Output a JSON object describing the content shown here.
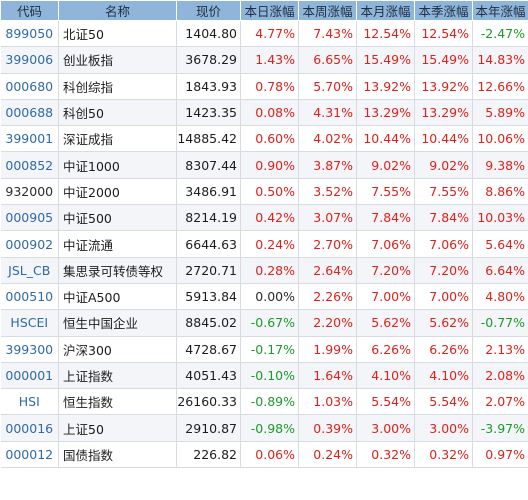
{
  "headers": [
    "代码",
    "名称",
    "现价",
    "本日涨幅",
    "本周涨幅",
    "本月涨幅",
    "本季涨幅",
    "本年涨幅"
  ],
  "rows": [
    {
      "code": "899050",
      "link": true,
      "name": "北证50",
      "price": "1404.80",
      "day": "4.77%",
      "week": "7.43%",
      "month": "12.54%",
      "quarter": "12.54%",
      "year": "-2.47%"
    },
    {
      "code": "399006",
      "link": true,
      "name": "创业板指",
      "price": "3678.29",
      "day": "1.43%",
      "week": "6.65%",
      "month": "15.49%",
      "quarter": "15.49%",
      "year": "14.83%"
    },
    {
      "code": "000680",
      "link": true,
      "name": "科创综指",
      "price": "1843.93",
      "day": "0.78%",
      "week": "5.70%",
      "month": "13.92%",
      "quarter": "13.92%",
      "year": "12.66%"
    },
    {
      "code": "000688",
      "link": true,
      "name": "科创50",
      "price": "1423.35",
      "day": "0.08%",
      "week": "4.31%",
      "month": "13.29%",
      "quarter": "13.29%",
      "year": "5.89%"
    },
    {
      "code": "399001",
      "link": true,
      "name": "深证成指",
      "price": "14885.42",
      "day": "0.60%",
      "week": "4.02%",
      "month": "10.44%",
      "quarter": "10.44%",
      "year": "10.06%"
    },
    {
      "code": "000852",
      "link": true,
      "name": "中证1000",
      "price": "8307.44",
      "day": "0.90%",
      "week": "3.87%",
      "month": "9.02%",
      "quarter": "9.02%",
      "year": "9.38%"
    },
    {
      "code": "932000",
      "link": false,
      "name": "中证2000",
      "price": "3486.91",
      "day": "0.50%",
      "week": "3.52%",
      "month": "7.55%",
      "quarter": "7.55%",
      "year": "8.86%"
    },
    {
      "code": "000905",
      "link": true,
      "name": "中证500",
      "price": "8214.19",
      "day": "0.42%",
      "week": "3.07%",
      "month": "7.84%",
      "quarter": "7.84%",
      "year": "10.03%"
    },
    {
      "code": "000902",
      "link": true,
      "name": "中证流通",
      "price": "6644.63",
      "day": "0.24%",
      "week": "2.70%",
      "month": "7.06%",
      "quarter": "7.06%",
      "year": "5.64%"
    },
    {
      "code": "JSL_CB",
      "link": true,
      "name": "集思录可转债等权",
      "price": "2720.71",
      "day": "0.28%",
      "week": "2.64%",
      "month": "7.20%",
      "quarter": "7.20%",
      "year": "6.64%"
    },
    {
      "code": "000510",
      "link": true,
      "name": "中证A500",
      "price": "5913.84",
      "day": "0.00%",
      "week": "2.26%",
      "month": "7.00%",
      "quarter": "7.00%",
      "year": "4.80%"
    },
    {
      "code": "HSCEI",
      "link": true,
      "name": "恒生中国企业",
      "price": "8845.02",
      "day": "-0.67%",
      "week": "2.20%",
      "month": "5.62%",
      "quarter": "5.62%",
      "year": "-0.77%"
    },
    {
      "code": "399300",
      "link": true,
      "name": "沪深300",
      "price": "4728.67",
      "day": "-0.17%",
      "week": "1.99%",
      "month": "6.26%",
      "quarter": "6.26%",
      "year": "2.13%"
    },
    {
      "code": "000001",
      "link": true,
      "name": "上证指数",
      "price": "4051.43",
      "day": "-0.10%",
      "week": "1.64%",
      "month": "4.10%",
      "quarter": "4.10%",
      "year": "2.08%"
    },
    {
      "code": "HSI",
      "link": true,
      "name": "恒生指数",
      "price": "26160.33",
      "day": "-0.89%",
      "week": "1.03%",
      "month": "5.54%",
      "quarter": "5.54%",
      "year": "2.07%"
    },
    {
      "code": "000016",
      "link": true,
      "name": "上证50",
      "price": "2910.87",
      "day": "-0.98%",
      "week": "0.39%",
      "month": "3.00%",
      "quarter": "3.00%",
      "year": "-3.97%"
    },
    {
      "code": "000012",
      "link": true,
      "name": "国债指数",
      "price": "226.82",
      "day": "0.06%",
      "week": "0.24%",
      "month": "0.32%",
      "quarter": "0.32%",
      "year": "0.97%"
    }
  ]
}
